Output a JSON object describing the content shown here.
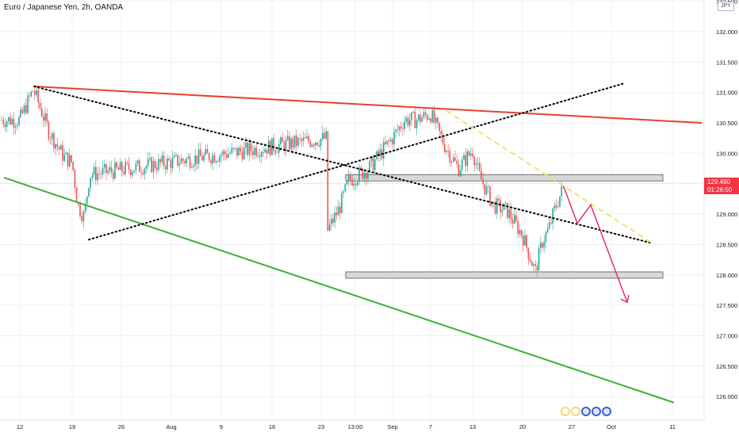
{
  "header": {
    "title": "Euro / Japanese Yen, 2h, OANDA",
    "currency_badge": "JPY"
  },
  "price_tag": {
    "price": "129.490",
    "countdown": "01:26:50",
    "color": "#f23645"
  },
  "colors": {
    "candle_up": "#26a69a",
    "candle_down": "#ef5350",
    "resistance_line": "#e8412f",
    "support_line": "#3fae3a",
    "dotted_line": "#000000",
    "dashed_line": "#f5e06b",
    "arrow": "#e91e63",
    "zone_fill": "#d1d1d1",
    "grid": "#eef0f3"
  },
  "chart_data": {
    "type": "candlestick",
    "instrument": "Euro / Japanese Yen",
    "interval": "2h",
    "source": "OANDA",
    "ylim": [
      125.8,
      132.6
    ],
    "y_ticks": [
      "132.500",
      "132.000",
      "131.500",
      "131.000",
      "130.500",
      "130.000",
      "129.500",
      "129.000",
      "128.500",
      "128.000",
      "127.500",
      "127.000",
      "126.500",
      "126.000"
    ],
    "x_ticks": [
      "12",
      "19",
      "26",
      "Aug",
      "9",
      "16",
      "23",
      "13:00",
      "Sep",
      "7",
      "13",
      "20",
      "27",
      "Oct",
      "11"
    ],
    "last_price": 129.49,
    "close_path": [
      [
        "12",
        130.55
      ],
      [
        "14",
        131.05
      ],
      [
        "16",
        130.35
      ],
      [
        "18",
        129.95
      ],
      [
        "19",
        129.85
      ],
      [
        "20",
        129.15
      ],
      [
        "21",
        128.95
      ],
      [
        "22",
        129.65
      ],
      [
        "24",
        130.25
      ],
      [
        "26",
        130.05
      ],
      [
        "28",
        130.45
      ],
      [
        "30",
        130.15
      ],
      [
        "Aug",
        129.75
      ],
      [
        "3",
        129.85
      ],
      [
        "5",
        129.95
      ],
      [
        "7",
        129.55
      ],
      [
        "9",
        129.6
      ],
      [
        "11",
        129.7
      ],
      [
        "13",
        129.75
      ],
      [
        "16",
        129.5
      ],
      [
        "17",
        128.7
      ],
      [
        "19",
        128.3
      ],
      [
        "21",
        128.45
      ],
      [
        "23",
        128.05
      ],
      [
        "24",
        128.7
      ],
      [
        "26",
        129.1
      ],
      [
        "28",
        129.55
      ],
      [
        "30",
        129.75
      ],
      [
        "Sep",
        130.25
      ],
      [
        "3",
        130.55
      ],
      [
        "5",
        130.55
      ],
      [
        "7",
        130.65
      ],
      [
        "9",
        130.15
      ],
      [
        "11",
        129.75
      ],
      [
        "13",
        130.05
      ],
      [
        "14",
        129.65
      ],
      [
        "16",
        129.15
      ],
      [
        "18",
        129.05
      ],
      [
        "20",
        128.65
      ],
      [
        "21",
        128.35
      ],
      [
        "22",
        128.05
      ],
      [
        "23",
        128.55
      ],
      [
        "24",
        128.75
      ],
      [
        "25",
        129.1
      ],
      [
        "26",
        129.49
      ]
    ],
    "annotations": [
      {
        "kind": "trendline",
        "style": "solid",
        "color": "#e8412f",
        "from": [
          "14",
          131.1
        ],
        "to": [
          "Oct+",
          130.5
        ]
      },
      {
        "kind": "trendline",
        "style": "solid",
        "color": "#3fae3a",
        "from": [
          "12",
          129.6
        ],
        "to": [
          "Oct+",
          125.9
        ]
      },
      {
        "kind": "trendline",
        "style": "dotted",
        "color": "#000000",
        "from": [
          "14",
          131.1
        ],
        "to": [
          "Oct",
          128.52
        ]
      },
      {
        "kind": "trendline",
        "style": "dotted",
        "color": "#000000",
        "from": [
          "21",
          128.58
        ],
        "to": [
          "Oct",
          131.15
        ]
      },
      {
        "kind": "trendline",
        "style": "dashed",
        "color": "#f5e06b",
        "from": [
          "7",
          130.7
        ],
        "to": [
          "Oct",
          128.52
        ]
      },
      {
        "kind": "zone",
        "low": 129.55,
        "high": 129.65
      },
      {
        "kind": "zone",
        "low": 127.95,
        "high": 128.05
      },
      {
        "kind": "projection_arrow",
        "color": "#e91e63",
        "points": [
          [
            "26",
            129.45
          ],
          [
            "27",
            128.85
          ],
          [
            "29",
            129.15
          ],
          [
            "Oct",
            127.55
          ]
        ]
      }
    ],
    "grid": true
  }
}
